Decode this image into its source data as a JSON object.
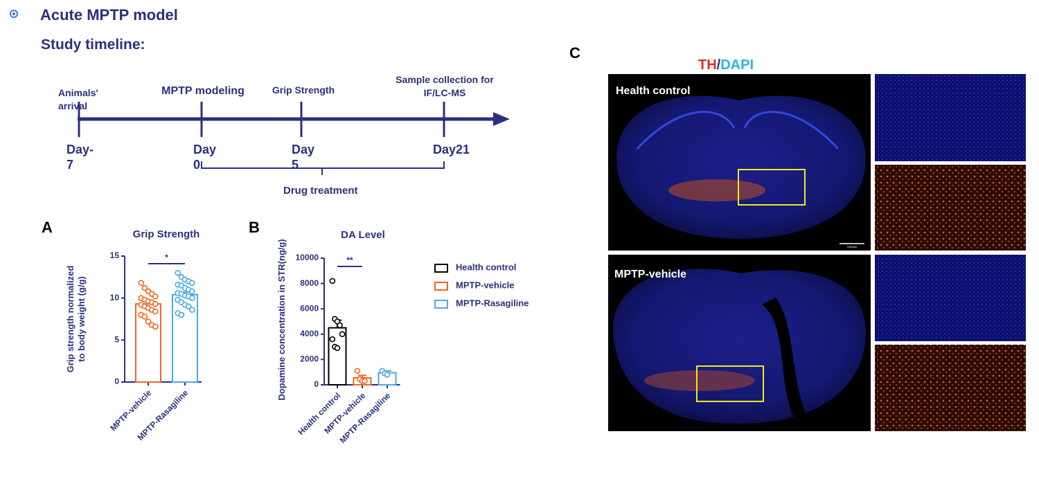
{
  "header": {
    "title": "Acute MPTP model",
    "subtitle": "Study timeline:"
  },
  "timeline": {
    "events": [
      {
        "label": "Animals' arrival",
        "day": "Day-7"
      },
      {
        "label": "MPTP modeling",
        "day": "Day 0"
      },
      {
        "label": "Grip Strength",
        "day": "Day 5"
      },
      {
        "label": "Sample collection for IF/LC-MS",
        "day": "Day21"
      }
    ],
    "treatment": "Drug treatment"
  },
  "chart_data": [
    {
      "type": "bar",
      "panel": "A",
      "title": "Grip Strength",
      "y_label": "Grip strength normalized to body weight (g/g)",
      "categories": [
        "MPTP-vehicle",
        "MPTP-Rasagiline"
      ],
      "values": [
        9.3,
        10.4
      ],
      "errors": [
        0.3,
        0.3
      ],
      "points": [
        [
          11.8,
          11.2,
          10.8,
          10.5,
          10.2,
          10.0,
          9.8,
          9.6,
          9.5,
          9.3,
          9.2,
          9.0,
          8.8,
          8.6,
          8.4,
          8.0,
          7.8,
          7.2,
          6.8,
          6.6
        ],
        [
          13.0,
          12.5,
          12.2,
          12.0,
          11.8,
          11.6,
          11.5,
          11.2,
          11.0,
          10.8,
          10.6,
          10.5,
          10.3,
          10.2,
          10.0,
          9.8,
          9.5,
          9.2,
          9.0,
          8.6,
          8.2,
          8.0
        ]
      ],
      "colors": [
        "#f26522",
        "#4da6e8"
      ],
      "significance": "*",
      "ylim": [
        0,
        15
      ],
      "yticks": [
        0,
        5,
        10,
        15
      ]
    },
    {
      "type": "bar",
      "panel": "B",
      "title": "DA Level",
      "y_label": "Dopamine concentration in STR(ng/g)",
      "categories": [
        "Health control",
        "MPTP-vehicle",
        "MPTP-Rasagiline"
      ],
      "values": [
        4500,
        550,
        950
      ],
      "errors": [
        600,
        200,
        150
      ],
      "points": [
        [
          8200,
          5200,
          5000,
          4700,
          4000,
          3600,
          3000,
          2900
        ],
        [
          1100,
          450,
          300,
          300
        ],
        [
          1100,
          900,
          800
        ]
      ],
      "colors": [
        "#000000",
        "#f26522",
        "#4da6e8"
      ],
      "significance": "**",
      "legend": true,
      "ylim": [
        0,
        10000
      ],
      "yticks": [
        0,
        2000,
        4000,
        6000,
        8000,
        10000
      ]
    }
  ],
  "panel_c": {
    "letter": "C",
    "stain": [
      "TH",
      "/",
      "DAPI"
    ],
    "stain_colors": [
      "#e8262a",
      "#2b2f7f",
      "#27b4e6"
    ],
    "groups": [
      "Health control",
      "MPTP-vehicle"
    ],
    "scale_bar": "1000μm"
  }
}
